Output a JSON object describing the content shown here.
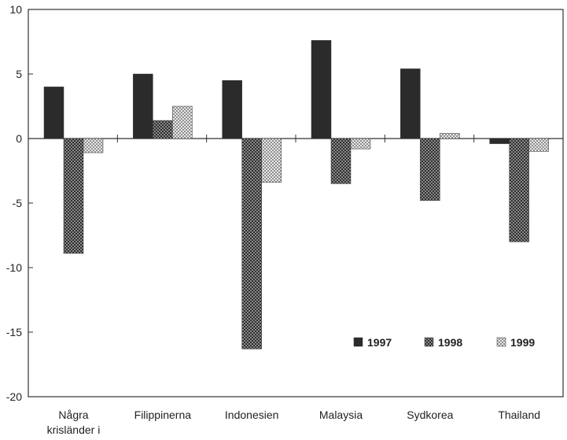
{
  "chart_data": {
    "type": "bar",
    "title": "",
    "xlabel": "",
    "ylabel": "",
    "ylim": [
      -20,
      10
    ],
    "yticks": [
      10,
      5,
      0,
      -5,
      -10,
      -15,
      -20
    ],
    "ytick_labels": [
      "10",
      "5",
      "0",
      "-5",
      "-10",
      "-15",
      "-20"
    ],
    "grid": false,
    "legend_position": "bottom-right",
    "categories": [
      "Några krisländer i",
      "Filippinerna",
      "Indonesien",
      "Malaysia",
      "Sydkorea",
      "Thailand"
    ],
    "category_lines": [
      [
        "Några",
        "krisländer i"
      ],
      [
        "Filippinerna"
      ],
      [
        "Indonesien"
      ],
      [
        "Malaysia"
      ],
      [
        "Sydkorea"
      ],
      [
        "Thailand"
      ]
    ],
    "series": [
      {
        "name": "1997",
        "values": [
          4.0,
          5.0,
          4.5,
          7.6,
          5.4,
          -0.4
        ],
        "color": "#2b2b2b",
        "pattern": "solid"
      },
      {
        "name": "1998",
        "values": [
          -8.9,
          1.4,
          -16.3,
          -3.5,
          -4.8,
          -8.0
        ],
        "color": "#555555",
        "pattern": "checker-dark"
      },
      {
        "name": "1999",
        "values": [
          -1.1,
          2.5,
          -3.4,
          -0.8,
          0.4,
          -1.0
        ],
        "color": "#b5b5b5",
        "pattern": "checker-light"
      }
    ]
  }
}
